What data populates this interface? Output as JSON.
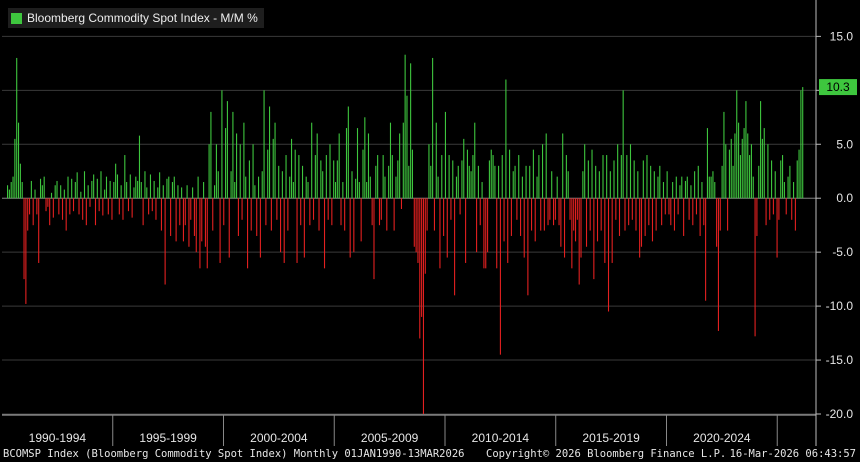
{
  "legend": {
    "label": "Bloomberg Commodity Spot Index - M/M %",
    "color": "#3ec63e"
  },
  "last_value_label": "10.3",
  "footer": {
    "left": "BCOMSP Index (Bloomberg Commodity Spot Index) Monthly 01JAN1990-13MAR2026",
    "copyright": "Copyright© 2026 Bloomberg Finance L.P.",
    "timestamp": "16-Mar-2026 06:43:57"
  },
  "chart_data": {
    "type": "bar",
    "title": "Bloomberg Commodity Spot Index - M/M %",
    "frequency": "Monthly",
    "start": "1990-01",
    "end": "2026-03",
    "ylim": [
      -20,
      18
    ],
    "y_ticks": [
      15.0,
      10.0,
      5.0,
      0.0,
      -5.0,
      -10.0,
      -15.0,
      -20.0
    ],
    "y_tick_labels": [
      "15.0",
      "10.0",
      "5.0",
      "0.0",
      "-5.0",
      "-10.0",
      "-15.0",
      "-20.0"
    ],
    "x_groups": [
      "1990-1994",
      "1995-1999",
      "2000-2004",
      "2005-2009",
      "2010-2014",
      "2015-2019",
      "2020-2024"
    ],
    "positive_color": "#3ec63e",
    "negative_color": "#e32020",
    "last_value": 10.3,
    "grid": true,
    "legend": "top-left",
    "annual_values": {
      "1990": [
        1.2,
        0.8,
        1.5,
        2.0,
        5.5,
        13.0,
        7.0,
        3.2,
        1.5,
        -7.5,
        -9.8,
        -3.0
      ],
      "1991": [
        -1.5,
        1.6,
        -2.5,
        0.8,
        -1.5,
        -6.0,
        1.8,
        1.2,
        2.0,
        -1.2,
        -0.8,
        -2.5
      ],
      "1992": [
        0.5,
        -1.8,
        1.2,
        1.6,
        -1.5,
        1.2,
        -2.0,
        0.8,
        -3.0,
        2.0,
        -1.5,
        1.8
      ],
      "1993": [
        -1.2,
        1.5,
        2.4,
        -1.5,
        0.6,
        -2.0,
        2.5,
        -2.5,
        1.2,
        -0.8,
        1.6,
        2.2
      ],
      "1994": [
        -2.5,
        1.8,
        -1.2,
        2.5,
        -1.6,
        0.8,
        2.0,
        -1.5,
        1.6,
        -2.0,
        1.5,
        3.2
      ],
      "1995": [
        2.2,
        -1.5,
        1.2,
        -2.0,
        4.0,
        1.5,
        -1.2,
        2.2,
        -1.8,
        1.0,
        2.0,
        1.6
      ],
      "1996": [
        5.8,
        1.5,
        -2.5,
        2.5,
        1.0,
        -1.5,
        2.2,
        -1.2,
        1.6,
        -2.0,
        1.0,
        2.4
      ],
      "1997": [
        -3.0,
        1.2,
        -8.0,
        1.8,
        2.0,
        -3.5,
        1.5,
        2.0,
        -4.0,
        1.2,
        -2.5,
        1.0
      ],
      "1998": [
        -4.0,
        -2.5,
        1.2,
        -4.5,
        -2.0,
        1.0,
        -3.5,
        -5.0,
        2.0,
        -6.5,
        -4.0,
        1.5
      ],
      "1999": [
        -4.5,
        -6.5,
        5.0,
        8.0,
        -3.0,
        1.2,
        5.0,
        2.5,
        -6.0,
        10.0,
        -2.5,
        6.5
      ],
      "2000": [
        9.0,
        -5.5,
        2.5,
        8.0,
        1.5,
        6.0,
        -3.5,
        5.0,
        -2.0,
        7.0,
        2.0,
        -6.5
      ],
      "2001": [
        3.5,
        -3.0,
        5.0,
        1.2,
        -3.5,
        2.0,
        -5.5,
        2.5,
        10.0,
        -2.5,
        4.5,
        8.5
      ],
      "2002": [
        -3.0,
        5.5,
        7.0,
        -2.0,
        3.0,
        -5.0,
        2.5,
        -6.0,
        4.0,
        -3.0,
        2.0,
        5.5
      ],
      "2003": [
        1.5,
        4.5,
        -6.0,
        4.0,
        -2.5,
        3.0,
        -5.5,
        2.0,
        1.5,
        -2.5,
        7.0,
        -2.0
      ],
      "2004": [
        4.0,
        6.0,
        -3.0,
        3.5,
        2.5,
        -6.5,
        4.0,
        -2.0,
        5.0,
        -2.5,
        3.5,
        1.5
      ],
      "2005": [
        3.5,
        6.0,
        -2.5,
        1.5,
        -3.0,
        6.5,
        8.5,
        -5.5,
        2.5,
        -5.0,
        1.8,
        6.5
      ],
      "2006": [
        1.5,
        -4.0,
        4.5,
        7.5,
        1.5,
        6.0,
        2.0,
        -2.5,
        -7.5,
        3.0,
        4.0,
        -2.5
      ],
      "2007": [
        -2.0,
        4.0,
        2.0,
        -3.0,
        3.0,
        7.0,
        4.0,
        -3.0,
        2.0,
        3.5,
        6.0,
        -1.0
      ],
      "2008": [
        7.0,
        13.3,
        9.5,
        3.0,
        12.5,
        4.5,
        -4.5,
        -5.0,
        -6.0,
        -13.0,
        -11.0,
        -20.0
      ],
      "2009": [
        -7.0,
        -3.0,
        5.0,
        3.0,
        13.0,
        -3.0,
        7.0,
        2.0,
        -6.5,
        4.0,
        -3.5,
        8.0
      ],
      "2010": [
        -5.5,
        4.0,
        -2.0,
        3.5,
        -9.0,
        2.0,
        3.0,
        -1.5,
        3.5,
        5.5,
        -6.0,
        4.5
      ],
      "2011": [
        3.0,
        2.5,
        4.0,
        7.0,
        -5.0,
        3.0,
        -2.5,
        1.5,
        -6.5,
        -6.5,
        -5.0,
        3.5
      ],
      "2012": [
        4.5,
        4.0,
        3.0,
        -6.5,
        3.0,
        -14.5,
        4.0,
        -4.0,
        11.0,
        -6.0,
        4.5,
        -3.5
      ],
      "2013": [
        2.5,
        3.0,
        -2.0,
        4.0,
        -3.5,
        2.0,
        -5.5,
        3.0,
        -9.0,
        3.0,
        -3.0,
        4.5
      ],
      "2014": [
        -4.0,
        2.0,
        4.0,
        -3.0,
        5.0,
        -3.0,
        6.0,
        -2.5,
        -2.0,
        2.5,
        -2.5,
        -2.0
      ],
      "2015": [
        2.0,
        -2.5,
        -4.5,
        6.0,
        -5.5,
        4.0,
        2.5,
        -2.0,
        -6.5,
        -3.0,
        -4.0,
        -2.0
      ],
      "2016": [
        -8.0,
        -5.5,
        2.5,
        5.0,
        -4.5,
        3.5,
        -3.0,
        4.5,
        -7.5,
        3.0,
        -4.0,
        2.5
      ],
      "2017": [
        -3.0,
        4.0,
        -6.0,
        4.0,
        -10.5,
        2.5,
        -6.0,
        3.5,
        -2.0,
        5.0,
        -3.5,
        4.0
      ],
      "2018": [
        10.0,
        -3.0,
        4.0,
        -2.5,
        5.0,
        -2.0,
        3.5,
        -3.0,
        2.5,
        -5.5,
        -4.5,
        3.5
      ],
      "2019": [
        -3.5,
        4.0,
        -2.5,
        3.0,
        -4.0,
        2.5,
        -3.0,
        2.0,
        3.0,
        -2.5,
        1.5,
        -1.5
      ],
      "2020": [
        2.5,
        -1.5,
        -2.5,
        1.5,
        -3.0,
        2.0,
        -1.5,
        1.2,
        2.0,
        -3.5,
        1.6,
        2.0
      ],
      "2021": [
        -2.0,
        1.2,
        -2.5,
        2.5,
        -1.5,
        3.0,
        -3.5,
        1.5,
        -2.5,
        -9.5,
        6.5,
        2.0
      ],
      "2022": [
        2.0,
        2.5,
        1.5,
        -4.5,
        -12.3,
        -3.0,
        3.0,
        8.0,
        5.0,
        -3.0,
        4.5,
        5.5
      ],
      "2023": [
        3.0,
        6.0,
        10.0,
        7.0,
        4.0,
        5.5,
        6.5,
        9.0,
        6.0,
        4.0,
        5.0,
        2.0
      ],
      "2024": [
        -12.8,
        -3.5,
        3.0,
        9.0,
        5.5,
        6.5,
        -2.5,
        5.0,
        -2.0,
        3.5,
        -1.5,
        2.5
      ],
      "2025": [
        -5.5,
        -2.0,
        3.5,
        4.0,
        1.5,
        -1.5,
        2.0,
        3.0,
        -2.0,
        1.5,
        -3.0,
        3.5
      ],
      "2026": [
        4.5,
        10.0,
        10.3
      ]
    }
  }
}
